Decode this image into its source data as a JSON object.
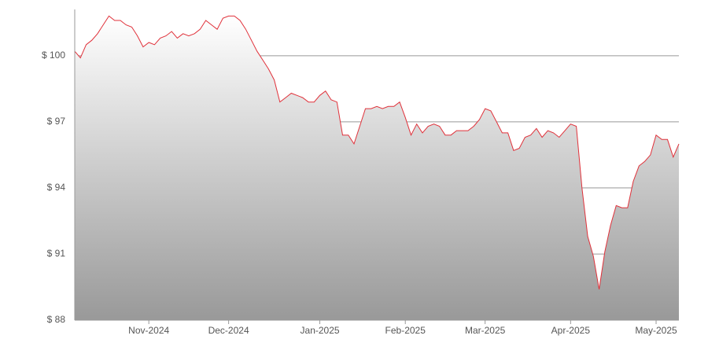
{
  "chart_data": {
    "type": "area",
    "categories": [
      null,
      null,
      null,
      null,
      null,
      null,
      null,
      null,
      null,
      null,
      null,
      null,
      null,
      "Nov-2024",
      null,
      null,
      null,
      null,
      null,
      null,
      null,
      null,
      null,
      null,
      null,
      null,
      null,
      "Dec-2024",
      null,
      null,
      null,
      null,
      null,
      null,
      null,
      null,
      null,
      null,
      null,
      null,
      null,
      null,
      null,
      "Jan-2025",
      null,
      null,
      null,
      null,
      null,
      null,
      null,
      null,
      null,
      null,
      null,
      null,
      null,
      null,
      "Feb-2025",
      null,
      null,
      null,
      null,
      null,
      null,
      null,
      null,
      null,
      null,
      null,
      null,
      null,
      "Mar-2025",
      null,
      null,
      null,
      null,
      null,
      null,
      null,
      null,
      null,
      null,
      null,
      null,
      null,
      null,
      "Apr-2025",
      null,
      null,
      null,
      null,
      null,
      null,
      null,
      null,
      null,
      null,
      null,
      null,
      null,
      null,
      "May-2025",
      null,
      null,
      null,
      null
    ],
    "values": [
      100.2,
      99.9,
      100.5,
      100.7,
      101.0,
      101.4,
      101.8,
      101.6,
      101.6,
      101.4,
      101.3,
      100.9,
      100.4,
      100.6,
      100.5,
      100.8,
      100.9,
      101.1,
      100.8,
      101.0,
      100.9,
      101.0,
      101.2,
      101.6,
      101.4,
      101.2,
      101.7,
      101.8,
      101.8,
      101.6,
      101.2,
      100.7,
      100.2,
      99.8,
      99.4,
      98.9,
      97.9,
      98.1,
      98.3,
      98.2,
      98.1,
      97.9,
      97.9,
      98.2,
      98.4,
      98.0,
      97.9,
      96.4,
      96.4,
      96.0,
      96.8,
      97.6,
      97.6,
      97.7,
      97.6,
      97.7,
      97.7,
      97.9,
      97.2,
      96.4,
      96.9,
      96.5,
      96.8,
      96.9,
      96.8,
      96.4,
      96.4,
      96.6,
      96.6,
      96.6,
      96.8,
      97.1,
      97.6,
      97.5,
      97.0,
      96.5,
      96.5,
      95.7,
      95.8,
      96.3,
      96.4,
      96.7,
      96.3,
      96.6,
      96.5,
      96.3,
      96.6,
      96.9,
      96.8,
      94.0,
      91.8,
      90.9,
      89.4,
      91.1,
      92.3,
      93.2,
      93.1,
      93.1,
      94.3,
      95.0,
      95.2,
      95.5,
      96.4,
      96.2,
      96.2,
      95.4,
      96.0
    ],
    "color": "#e0313a",
    "ylim": [
      88,
      102.1
    ],
    "yticks": [
      {
        "value": 88,
        "label": "$ 88"
      },
      {
        "value": 91,
        "label": "$ 91"
      },
      {
        "value": 94,
        "label": "$ 94"
      },
      {
        "value": 97,
        "label": "$ 97"
      },
      {
        "value": 100,
        "label": "$ 100"
      }
    ],
    "grid": true
  }
}
